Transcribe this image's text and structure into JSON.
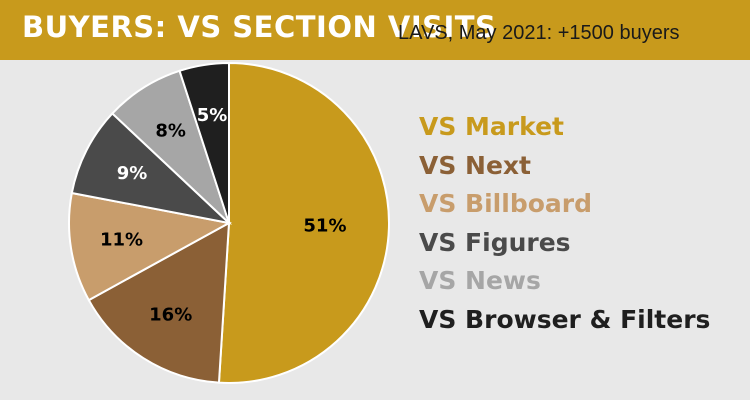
{
  "header": {
    "title": "BUYERS: VS SECTION VISITS",
    "subtitle": "LAVS, May 2021: +1500 buyers"
  },
  "colors": {
    "header_bg": "#c89a1c",
    "background": "#e8e8e8"
  },
  "chart_data": {
    "type": "pie",
    "title": "BUYERS: VS SECTION VISITS",
    "subtitle": "LAVS, May 2021: +1500 buyers",
    "unit": "%",
    "legend_position": "right",
    "slices": [
      {
        "name": "VS Market",
        "value": 51,
        "label": "51%",
        "color": "#c89a1c"
      },
      {
        "name": "VS Next",
        "value": 16,
        "label": "16%",
        "color": "#8b6036"
      },
      {
        "name": "VS Billboard",
        "value": 11,
        "label": "11%",
        "color": "#c89d6c"
      },
      {
        "name": "VS Figures",
        "value": 9,
        "label": "9%",
        "color": "#4a4a4a"
      },
      {
        "name": "VS News",
        "value": 8,
        "label": "8%",
        "color": "#a6a6a6"
      },
      {
        "name": "VS Browser & Filters",
        "value": 5,
        "label": "5%",
        "color": "#1f1f1f"
      }
    ]
  }
}
